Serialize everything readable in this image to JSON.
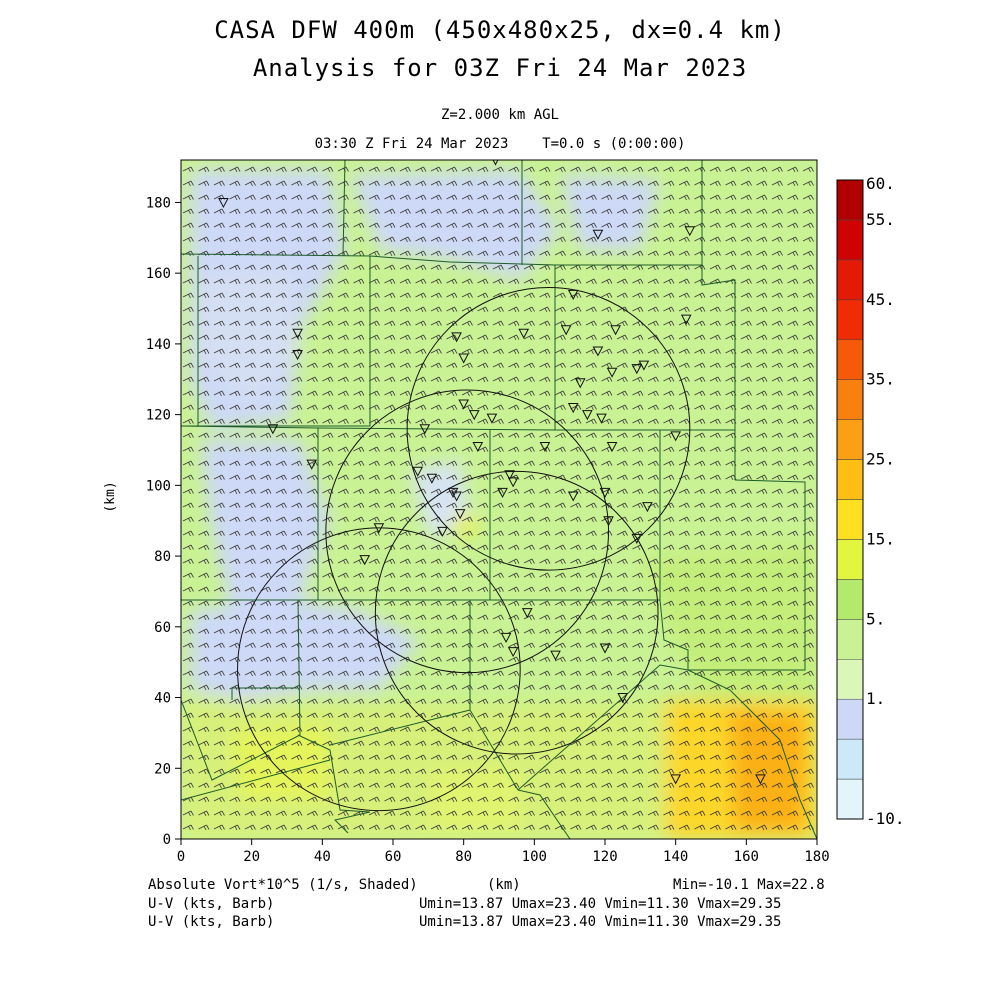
{
  "header": {
    "title_line1": "CASA DFW 400m (450x480x25, dx=0.4 km)",
    "title_line2": "Analysis for 03Z Fri 24 Mar 2023",
    "level": "Z=2.000 km AGL",
    "valid_time": "03:30 Z Fri 24 Mar 2023    T=0.0 s (0:00:00)"
  },
  "axes": {
    "x_label": "(km)",
    "y_label": "(km)",
    "x_ticks": [
      "0",
      "20",
      "40",
      "60",
      "80",
      "100",
      "120",
      "140",
      "160",
      "180"
    ],
    "y_ticks": [
      "0",
      "20",
      "40",
      "60",
      "80",
      "100",
      "120",
      "140",
      "160",
      "180"
    ],
    "x_range_km": [
      0,
      180
    ],
    "y_range_km": [
      0,
      192
    ]
  },
  "colorbar": {
    "labels": [
      "60.",
      "55.",
      "45.",
      "35.",
      "25.",
      "15.",
      "5.",
      "1.",
      "-10."
    ],
    "colors": [
      "#e3f4fb",
      "#cde8f8",
      "#ccd8f5",
      "#dbf7b8",
      "#c9f294",
      "#b4ea6c",
      "#e2f640",
      "#fde021",
      "#fdbf14",
      "#fba014",
      "#f8800f",
      "#f45a0a",
      "#ef2c06",
      "#e31a04",
      "#cf0202",
      "#b00000"
    ]
  },
  "footer": {
    "field_label": "Absolute Vort*10^5 (1/s, Shaded)",
    "x_unit": "(km)",
    "minmax": "Min=-10.1 Max=22.8",
    "barb1_label": "U-V (kts, Barb)",
    "barb1_stats": "Umin=13.87 Umax=23.40 Vmin=11.30 Vmax=29.35",
    "barb2_label": "U-V (kts, Barb)",
    "barb2_stats": "Umin=13.87 Umax=23.40 Vmin=11.30 Vmax=29.35"
  },
  "map_data": {
    "radar_rings_km": [
      {
        "cx": 104,
        "cy": 116,
        "r": 40
      },
      {
        "cx": 81,
        "cy": 87,
        "r": 40
      },
      {
        "cx": 95,
        "cy": 64,
        "r": 40
      },
      {
        "cx": 56,
        "cy": 48,
        "r": 40
      }
    ],
    "stations_km": [
      [
        89,
        192
      ],
      [
        12,
        180
      ],
      [
        118,
        171
      ],
      [
        144,
        172
      ],
      [
        111,
        154
      ],
      [
        143,
        147
      ],
      [
        33,
        143
      ],
      [
        78,
        142
      ],
      [
        97,
        143
      ],
      [
        109,
        144
      ],
      [
        123,
        144
      ],
      [
        33,
        137
      ],
      [
        80,
        136
      ],
      [
        118,
        138
      ],
      [
        113,
        129
      ],
      [
        122,
        132
      ],
      [
        129,
        133
      ],
      [
        131,
        134
      ],
      [
        80,
        123
      ],
      [
        111,
        122
      ],
      [
        115,
        120
      ],
      [
        119,
        119
      ],
      [
        83,
        120
      ],
      [
        88,
        119
      ],
      [
        26,
        116
      ],
      [
        69,
        116
      ],
      [
        140,
        114
      ],
      [
        84,
        111
      ],
      [
        103,
        111
      ],
      [
        122,
        111
      ],
      [
        37,
        106
      ],
      [
        67,
        104
      ],
      [
        71,
        102
      ],
      [
        77,
        98
      ],
      [
        78,
        97
      ],
      [
        93,
        103
      ],
      [
        94,
        101
      ],
      [
        91,
        98
      ],
      [
        111,
        97
      ],
      [
        120,
        98
      ],
      [
        132,
        94
      ],
      [
        79,
        92
      ],
      [
        74,
        87
      ],
      [
        56,
        88
      ],
      [
        52,
        79
      ],
      [
        121,
        90
      ],
      [
        129,
        85
      ],
      [
        98,
        64
      ],
      [
        106,
        52
      ],
      [
        120,
        54
      ],
      [
        92,
        57
      ],
      [
        94,
        53
      ],
      [
        125,
        40
      ],
      [
        140,
        17
      ],
      [
        164,
        17
      ]
    ]
  }
}
